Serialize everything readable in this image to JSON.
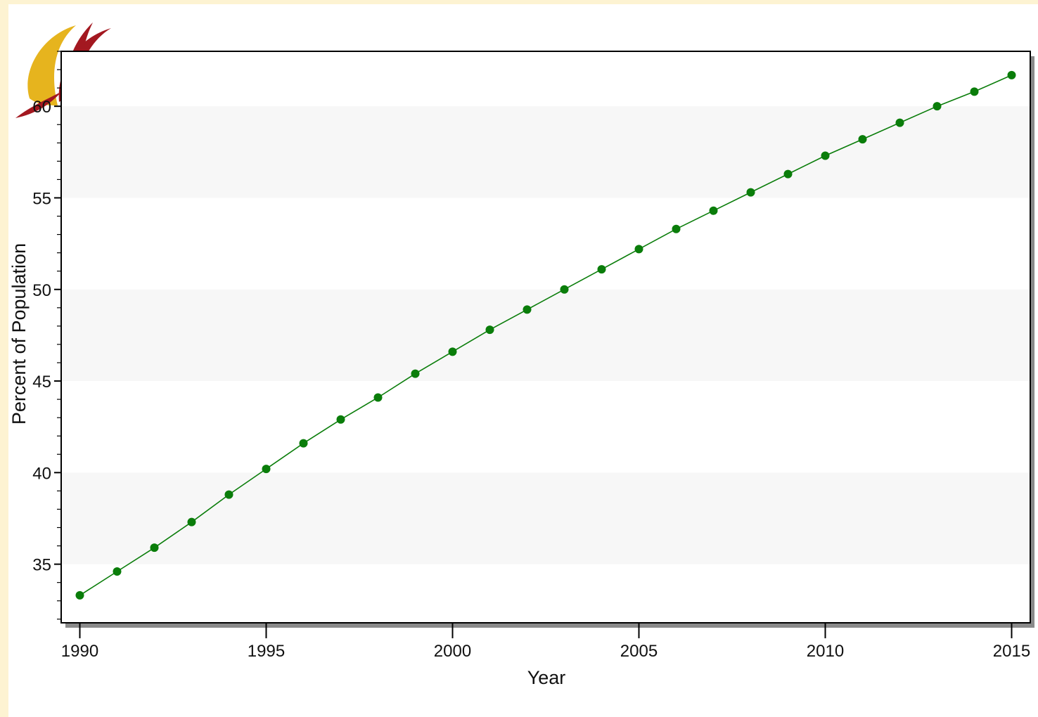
{
  "colors": {
    "page_background": "#fdf3d2",
    "panel_background": "#ffffff",
    "band_fill": "#f7f7f7",
    "series_color": "#0a7d0a",
    "logo_gold": "#e6b41e",
    "logo_red": "#a31820"
  },
  "logo": {
    "icon": "flame-swoosh-logo-icon"
  },
  "chart_data": {
    "type": "line",
    "xlabel": "Year",
    "ylabel": "Percent of Population",
    "xlim": [
      1989.5,
      2015.5
    ],
    "ylim": [
      31.8,
      63.0
    ],
    "x_ticks": [
      1990,
      1995,
      2000,
      2005,
      2010,
      2015
    ],
    "y_ticks": [
      35,
      40,
      45,
      50,
      55,
      60
    ],
    "grid": "alternating horizontal bands",
    "legend": "none",
    "series": [
      {
        "marker": "filled-circle",
        "x": [
          1990,
          1991,
          1992,
          1993,
          1994,
          1995,
          1996,
          1997,
          1998,
          1999,
          2000,
          2001,
          2002,
          2003,
          2004,
          2005,
          2006,
          2007,
          2008,
          2009,
          2010,
          2011,
          2012,
          2013,
          2014,
          2015
        ],
        "y": [
          33.3,
          34.6,
          35.9,
          37.3,
          38.8,
          40.2,
          41.6,
          42.9,
          44.1,
          45.4,
          46.6,
          47.8,
          48.9,
          50.0,
          51.1,
          52.2,
          53.3,
          54.3,
          55.3,
          56.3,
          57.3,
          58.2,
          59.1,
          60.0,
          60.8,
          61.7
        ]
      }
    ]
  }
}
